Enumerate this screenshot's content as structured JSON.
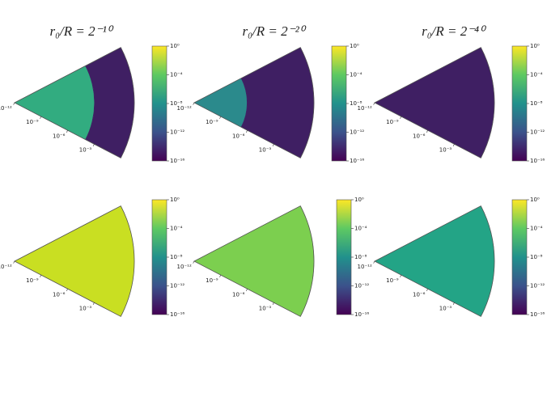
{
  "chart_data": [
    {
      "type": "wedge",
      "title": "r₀/R = 2⁻¹⁰",
      "rlim": [
        1e-12,
        1
      ],
      "rticks": [
        {
          "value": 1e-12,
          "label": "10⁻¹²"
        },
        {
          "value": 1e-09,
          "label": "10⁻⁹"
        },
        {
          "value": 1e-06,
          "label": "10⁻⁶"
        },
        {
          "value": 0.001,
          "label": "10⁻³"
        }
      ],
      "zones": [
        {
          "to": 0.0001,
          "color": "#32ac80"
        },
        {
          "to": 1,
          "color": "#3f1f63"
        }
      ],
      "clim": [
        1e-16,
        1
      ],
      "cticks": [
        {
          "value": 1,
          "label": "10⁰"
        },
        {
          "value": 0.0001,
          "label": "10⁻⁴"
        },
        {
          "value": 1e-08,
          "label": "10⁻⁸"
        },
        {
          "value": 1e-12,
          "label": "10⁻¹²"
        },
        {
          "value": 1e-16,
          "label": "10⁻¹⁶"
        }
      ],
      "colormap": [
        "#440154",
        "#3b528b",
        "#21918c",
        "#5ec962",
        "#fde725"
      ]
    },
    {
      "type": "wedge",
      "title": "r₀/R = 2⁻²⁰",
      "rlim": [
        1e-12,
        1
      ],
      "rticks": [
        {
          "value": 1e-12,
          "label": "10⁻¹²"
        },
        {
          "value": 1e-09,
          "label": "10⁻⁹"
        },
        {
          "value": 1e-06,
          "label": "10⁻⁶"
        },
        {
          "value": 0.001,
          "label": "10⁻³"
        }
      ],
      "zones": [
        {
          "to": 2e-07,
          "color": "#2b8a8c"
        },
        {
          "to": 1,
          "color": "#3f1f63"
        }
      ],
      "clim": [
        1e-16,
        1
      ],
      "cticks": [
        {
          "value": 1,
          "label": "10⁰"
        },
        {
          "value": 0.0001,
          "label": "10⁻⁴"
        },
        {
          "value": 1e-08,
          "label": "10⁻⁸"
        },
        {
          "value": 1e-12,
          "label": "10⁻¹²"
        },
        {
          "value": 1e-16,
          "label": "10⁻¹⁶"
        }
      ],
      "colormap": [
        "#440154",
        "#3b528b",
        "#21918c",
        "#5ec962",
        "#fde725"
      ]
    },
    {
      "type": "wedge",
      "title": "r₀/R = 2⁻⁴⁰",
      "rlim": [
        1e-12,
        1
      ],
      "rticks": [
        {
          "value": 1e-12,
          "label": "10⁻¹²"
        },
        {
          "value": 1e-09,
          "label": "10⁻⁹"
        },
        {
          "value": 1e-06,
          "label": "10⁻⁶"
        },
        {
          "value": 0.001,
          "label": "10⁻³"
        }
      ],
      "zones": [
        {
          "to": 1,
          "color": "#3f1f63"
        }
      ],
      "clim": [
        1e-16,
        1
      ],
      "cticks": [
        {
          "value": 1,
          "label": "10⁰"
        },
        {
          "value": 0.0001,
          "label": "10⁻⁴"
        },
        {
          "value": 1e-08,
          "label": "10⁻⁸"
        },
        {
          "value": 1e-12,
          "label": "10⁻¹²"
        },
        {
          "value": 1e-16,
          "label": "10⁻¹⁶"
        }
      ],
      "colormap": [
        "#440154",
        "#3b528b",
        "#21918c",
        "#5ec962",
        "#fde725"
      ]
    },
    {
      "type": "wedge",
      "rlim": [
        1e-12,
        1
      ],
      "rticks": [
        {
          "value": 1e-12,
          "label": "10⁻¹²"
        },
        {
          "value": 1e-09,
          "label": "10⁻⁹"
        },
        {
          "value": 1e-06,
          "label": "10⁻⁶"
        },
        {
          "value": 0.001,
          "label": "10⁻³"
        }
      ],
      "zones": [
        {
          "to": 1,
          "color": "#c9df22"
        }
      ],
      "clim": [
        1e-16,
        1
      ],
      "cticks": [
        {
          "value": 1,
          "label": "10⁰"
        },
        {
          "value": 0.0001,
          "label": "10⁻⁴"
        },
        {
          "value": 1e-08,
          "label": "10⁻⁸"
        },
        {
          "value": 1e-12,
          "label": "10⁻¹²"
        },
        {
          "value": 1e-16,
          "label": "10⁻¹⁶"
        }
      ],
      "colormap": [
        "#440154",
        "#3b528b",
        "#21918c",
        "#5ec962",
        "#fde725"
      ]
    },
    {
      "type": "wedge",
      "rlim": [
        1e-12,
        1
      ],
      "rticks": [
        {
          "value": 1e-12,
          "label": "10⁻¹²"
        },
        {
          "value": 1e-09,
          "label": "10⁻⁹"
        },
        {
          "value": 1e-06,
          "label": "10⁻⁶"
        },
        {
          "value": 0.001,
          "label": "10⁻³"
        }
      ],
      "zones": [
        {
          "to": 1,
          "color": "#7ccf4f"
        }
      ],
      "clim": [
        1e-16,
        1
      ],
      "cticks": [
        {
          "value": 1,
          "label": "10⁰"
        },
        {
          "value": 0.0001,
          "label": "10⁻⁴"
        },
        {
          "value": 1e-08,
          "label": "10⁻⁸"
        },
        {
          "value": 1e-12,
          "label": "10⁻¹²"
        },
        {
          "value": 1e-16,
          "label": "10⁻¹⁶"
        }
      ],
      "colormap": [
        "#440154",
        "#3b528b",
        "#21918c",
        "#5ec962",
        "#fde725"
      ]
    },
    {
      "type": "wedge",
      "rlim": [
        1e-12,
        1
      ],
      "rticks": [
        {
          "value": 1e-12,
          "label": "10⁻¹²"
        },
        {
          "value": 1e-09,
          "label": "10⁻⁹"
        },
        {
          "value": 1e-06,
          "label": "10⁻⁶"
        },
        {
          "value": 0.001,
          "label": "10⁻³"
        }
      ],
      "zones": [
        {
          "to": 1,
          "color": "#23a486"
        }
      ],
      "clim": [
        1e-16,
        1
      ],
      "cticks": [
        {
          "value": 1,
          "label": "10⁰"
        },
        {
          "value": 0.0001,
          "label": "10⁻⁴"
        },
        {
          "value": 1e-08,
          "label": "10⁻⁸"
        },
        {
          "value": 1e-12,
          "label": "10⁻¹²"
        },
        {
          "value": 1e-16,
          "label": "10⁻¹⁶"
        }
      ],
      "colormap": [
        "#440154",
        "#3b528b",
        "#21918c",
        "#5ec962",
        "#fde725"
      ]
    }
  ]
}
